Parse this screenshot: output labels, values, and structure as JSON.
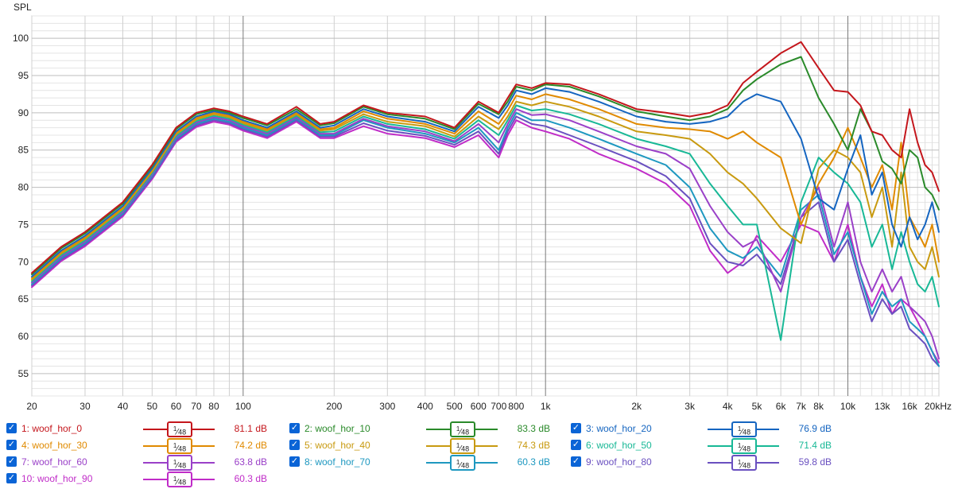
{
  "chart_data": {
    "type": "line",
    "ylabel": "SPL",
    "x_scale": "log",
    "xlim": [
      20,
      20000
    ],
    "ylim": [
      52,
      103
    ],
    "y_ticks": [
      55,
      60,
      65,
      70,
      75,
      80,
      85,
      90,
      95,
      100
    ],
    "x_ticks": [
      {
        "f": 20,
        "label": "20"
      },
      {
        "f": 30,
        "label": "30"
      },
      {
        "f": 40,
        "label": "40"
      },
      {
        "f": 50,
        "label": "50"
      },
      {
        "f": 60,
        "label": "60"
      },
      {
        "f": 70,
        "label": "70"
      },
      {
        "f": 80,
        "label": "80"
      },
      {
        "f": 100,
        "label": "100"
      },
      {
        "f": 200,
        "label": "200"
      },
      {
        "f": 300,
        "label": "300"
      },
      {
        "f": 400,
        "label": "400"
      },
      {
        "f": 500,
        "label": "500"
      },
      {
        "f": 600,
        "label": "600"
      },
      {
        "f": 700,
        "label": "700"
      },
      {
        "f": 800,
        "label": "800"
      },
      {
        "f": 1000,
        "label": "1k"
      },
      {
        "f": 2000,
        "label": "2k"
      },
      {
        "f": 3000,
        "label": "3k"
      },
      {
        "f": 4000,
        "label": "4k"
      },
      {
        "f": 5000,
        "label": "5k"
      },
      {
        "f": 6000,
        "label": "6k"
      },
      {
        "f": 7000,
        "label": "7k"
      },
      {
        "f": 8000,
        "label": "8k"
      },
      {
        "f": 10000,
        "label": "10k"
      },
      {
        "f": 13000,
        "label": "13k"
      },
      {
        "f": 16000,
        "label": "16k"
      },
      {
        "f": 20000,
        "label": "20kHz"
      }
    ],
    "x": [
      20,
      25,
      30,
      40,
      50,
      60,
      70,
      80,
      90,
      100,
      120,
      150,
      180,
      200,
      250,
      300,
      400,
      500,
      600,
      700,
      750,
      800,
      900,
      1000,
      1200,
      1500,
      2000,
      2500,
      3000,
      3500,
      4000,
      4500,
      5000,
      6000,
      7000,
      8000,
      9000,
      10000,
      11000,
      12000,
      13000,
      14000,
      15000,
      16000,
      17000,
      18000,
      19000,
      20000
    ],
    "series": [
      {
        "name": "woof_hor_0",
        "color": "#c4161c",
        "level": "81.1 dB",
        "values": [
          68.5,
          72,
          74,
          78,
          83,
          88,
          90,
          90.6,
          90.2,
          89.5,
          88.5,
          90.8,
          88.5,
          88.8,
          91,
          90,
          89.5,
          88,
          91.5,
          90,
          92,
          93.8,
          93.3,
          94,
          93.8,
          92.5,
          90.5,
          90,
          89.5,
          90,
          91,
          94,
          95.5,
          98,
          99.5,
          96,
          93,
          92.8,
          91,
          87.5,
          87,
          85,
          84,
          90.5,
          86,
          83,
          82,
          79.5
        ]
      },
      {
        "name": "woof_hor_10",
        "color": "#2a8a2a",
        "level": "83.3 dB",
        "values": [
          68.3,
          71.8,
          73.8,
          77.8,
          82.8,
          87.8,
          89.8,
          90.4,
          90,
          89.3,
          88.3,
          90.5,
          88.3,
          88.6,
          90.8,
          89.8,
          89.2,
          87.8,
          91.2,
          89.8,
          91.5,
          93.5,
          93,
          93.8,
          93.5,
          92.2,
          90.2,
          89.5,
          89,
          89.5,
          90.5,
          93,
          94.5,
          96.5,
          97.5,
          92,
          88.5,
          85,
          90.5,
          87.5,
          83.5,
          82.5,
          80.5,
          85,
          84,
          80,
          79,
          77
        ]
      },
      {
        "name": "woof_hor_20",
        "color": "#1565c0",
        "level": "76.9 dB",
        "values": [
          68,
          71.5,
          73.5,
          77.5,
          82.5,
          87.5,
          89.5,
          90.2,
          89.8,
          89,
          88,
          90.2,
          88,
          88.3,
          90.5,
          89.5,
          88.8,
          87.5,
          90.8,
          89.3,
          91,
          93,
          92.5,
          93.3,
          92.8,
          91.5,
          89.5,
          88.8,
          88.5,
          88.8,
          89.5,
          91.5,
          92.5,
          91.5,
          86.5,
          78.5,
          77,
          82.5,
          87,
          79,
          82,
          75,
          72,
          76,
          73,
          75,
          78,
          74
        ]
      },
      {
        "name": "woof_hor_30",
        "color": "#e08a00",
        "level": "74.2 dB",
        "values": [
          67.8,
          71.3,
          73.3,
          77.3,
          82.3,
          87.3,
          89.3,
          90,
          89.6,
          88.8,
          87.8,
          90,
          87.8,
          88,
          90.2,
          89.2,
          88.5,
          87.2,
          90.2,
          88.5,
          90.3,
          92.3,
          91.8,
          92.5,
          91.8,
          90.5,
          88.5,
          88,
          87.8,
          87.5,
          86.5,
          87.5,
          86,
          84,
          75,
          80.5,
          84,
          88,
          84,
          80,
          83,
          77,
          86,
          76,
          74,
          72,
          75,
          70
        ]
      },
      {
        "name": "woof_hor_40",
        "color": "#c89a10",
        "level": "74.3 dB",
        "values": [
          67.6,
          71.1,
          73.1,
          77.1,
          82.1,
          87.1,
          89.1,
          89.8,
          89.4,
          88.6,
          87.6,
          89.8,
          87.6,
          87.8,
          89.8,
          88.8,
          88.2,
          86.8,
          89.5,
          87.8,
          89.5,
          91.5,
          91,
          91.5,
          90.8,
          89.5,
          87.5,
          87,
          86.5,
          84.5,
          82,
          80.5,
          78.5,
          74.5,
          72.5,
          82.5,
          85,
          84,
          82,
          76,
          80,
          72,
          82,
          72,
          70,
          69,
          72,
          68
        ]
      },
      {
        "name": "woof_hor_50",
        "color": "#18b896",
        "level": "71.4 dB",
        "values": [
          67.4,
          70.9,
          72.9,
          76.9,
          81.9,
          86.9,
          88.9,
          89.6,
          89.2,
          88.4,
          87.4,
          89.6,
          87.4,
          87.5,
          89.5,
          88.5,
          87.8,
          86.5,
          89,
          87,
          89,
          91,
          90.3,
          90.5,
          89.8,
          88.5,
          86.5,
          85.5,
          84.5,
          80.5,
          77.5,
          75,
          75,
          59.5,
          78,
          84,
          82,
          80.5,
          78,
          72,
          75,
          69,
          74,
          70,
          67,
          66,
          68,
          64
        ]
      },
      {
        "name": "woof_hor_60",
        "color": "#9a40c8",
        "level": "63.8 dB",
        "values": [
          67.2,
          70.7,
          72.7,
          76.7,
          81.7,
          86.7,
          88.7,
          89.4,
          89,
          88.2,
          87.2,
          89.4,
          87.2,
          87.2,
          89.2,
          88.2,
          87.5,
          86.2,
          88.5,
          86,
          88.5,
          90.5,
          89.7,
          89.8,
          89,
          87.5,
          85.5,
          84.5,
          82.5,
          77.5,
          74,
          72,
          73,
          66,
          76,
          80,
          72,
          78,
          70,
          66,
          69,
          66,
          68,
          64,
          63,
          62,
          60,
          57
        ]
      },
      {
        "name": "woof_hor_70",
        "color": "#1e98c0",
        "level": "60.3 dB",
        "values": [
          67,
          70.5,
          72.5,
          76.5,
          81.5,
          86.5,
          88.5,
          89.2,
          88.8,
          88,
          87,
          89.2,
          87,
          87,
          89,
          88,
          87.2,
          86,
          88,
          85,
          88,
          90,
          89,
          89,
          88,
          86.5,
          84.5,
          83,
          80,
          74.5,
          71.5,
          70.5,
          72,
          68,
          77,
          79,
          71,
          74,
          68,
          63,
          66,
          64,
          65,
          62,
          61,
          60,
          58,
          56
        ]
      },
      {
        "name": "woof_hor_80",
        "color": "#6a50c0",
        "level": "59.8 dB",
        "values": [
          66.8,
          70.3,
          72.3,
          76.3,
          81.3,
          86.3,
          88.3,
          89,
          88.6,
          87.8,
          86.8,
          89,
          86.8,
          86.8,
          88.6,
          87.6,
          86.9,
          85.7,
          87.5,
          84.5,
          87.5,
          89.5,
          88.5,
          88.2,
          87,
          85.5,
          83.5,
          81.5,
          78.5,
          72.5,
          70,
          69.5,
          71,
          67,
          76,
          78,
          70,
          73,
          67,
          62,
          65,
          63,
          64,
          61,
          60,
          59,
          57,
          56
        ]
      },
      {
        "name": "woof_hor_90",
        "color": "#c02cc8",
        "level": "60.3 dB",
        "values": [
          66.6,
          70.1,
          72.1,
          76.1,
          81.1,
          86.1,
          88.1,
          88.8,
          88.4,
          87.6,
          86.6,
          88.8,
          86.6,
          86.6,
          88.2,
          87.2,
          86.6,
          85.4,
          87,
          84,
          87,
          89,
          88,
          87.5,
          86.5,
          84.5,
          82.5,
          80.5,
          77.5,
          71.5,
          68.5,
          70,
          73.5,
          70,
          75,
          74,
          70,
          75,
          68,
          64,
          67,
          63,
          65,
          64,
          62,
          60,
          58,
          56.5
        ]
      }
    ]
  }
}
